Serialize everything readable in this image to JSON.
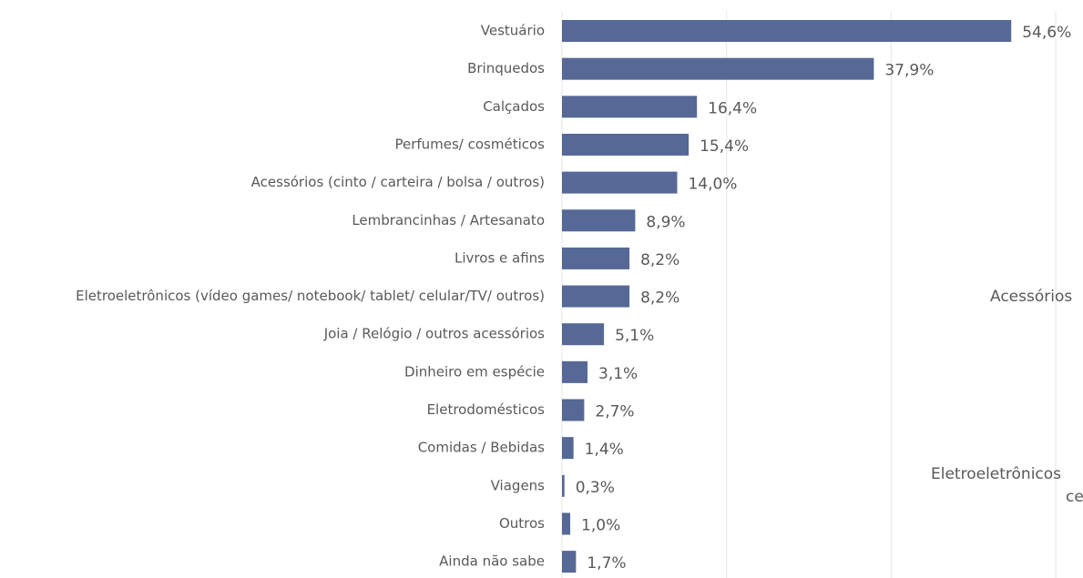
{
  "chart_data": {
    "type": "bar",
    "orientation": "horizontal",
    "categories": [
      "Vestuário",
      "Brinquedos",
      "Calçados",
      "Perfumes/ cosméticos",
      "Acessórios (cinto / carteira / bolsa / outros)",
      "Lembrancinhas / Artesanato",
      "Livros e afins",
      "Eletroeletrônicos (vídeo games/ notebook/ tablet/ celular/TV/ outros)",
      "Joia / Relógio / outros acessórios",
      "Dinheiro em espécie",
      "Eletrodomésticos",
      "Comidas / Bebidas",
      "Viagens",
      "Outros",
      "Ainda não sabe"
    ],
    "values": [
      54.6,
      37.9,
      16.4,
      15.4,
      14.0,
      8.9,
      8.2,
      8.2,
      5.1,
      3.1,
      2.7,
      1.4,
      0.3,
      1.0,
      1.7
    ],
    "value_labels": [
      "54,6%",
      "37,9%",
      "16,4%",
      "15,4%",
      "14,0%",
      "8,9%",
      "8,2%",
      "8,2%",
      "5,1%",
      "3,1%",
      "2,7%",
      "1,4%",
      "0,3%",
      "1,0%",
      "1,7%"
    ],
    "color": "#556896",
    "xlim": [
      0,
      60
    ],
    "xticks": [
      0,
      20,
      40,
      60
    ],
    "grid": true,
    "annotations": [
      "Acessórios",
      "Eletroeletrônicos",
      "ce"
    ]
  }
}
